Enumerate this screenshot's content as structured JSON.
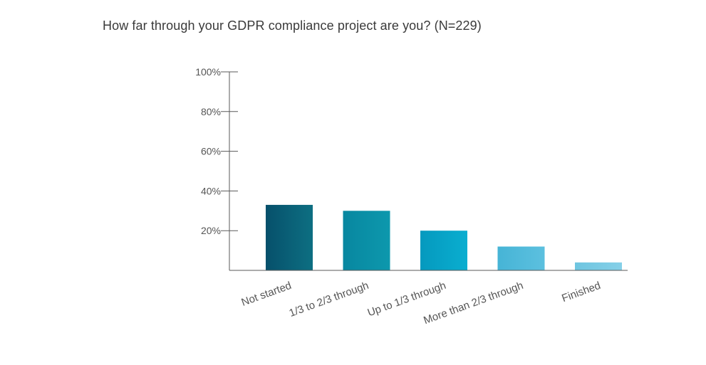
{
  "chart_data": {
    "type": "bar",
    "title": "How far through your GDPR compliance project are you? (N=229)",
    "categories": [
      "Not started",
      "1/3 to 2/3 through",
      "Up to 1/3 through",
      "More than 2/3 through",
      "Finished"
    ],
    "values": [
      33,
      30,
      20,
      12,
      4
    ],
    "yticks": [
      "20%",
      "40%",
      "60%",
      "80%",
      "100%"
    ],
    "ytick_values": [
      20,
      40,
      60,
      80,
      100
    ],
    "ylim": [
      0,
      100
    ],
    "grid": false,
    "legend": "none",
    "bar_colors": [
      [
        "#06506b",
        "#0d6f82"
      ],
      [
        "#0887a0",
        "#0d98ad"
      ],
      [
        "#0599be",
        "#0aaed0"
      ],
      [
        "#46b4d6",
        "#5cc0df"
      ],
      [
        "#6ec5e0",
        "#86d0e8"
      ]
    ]
  }
}
